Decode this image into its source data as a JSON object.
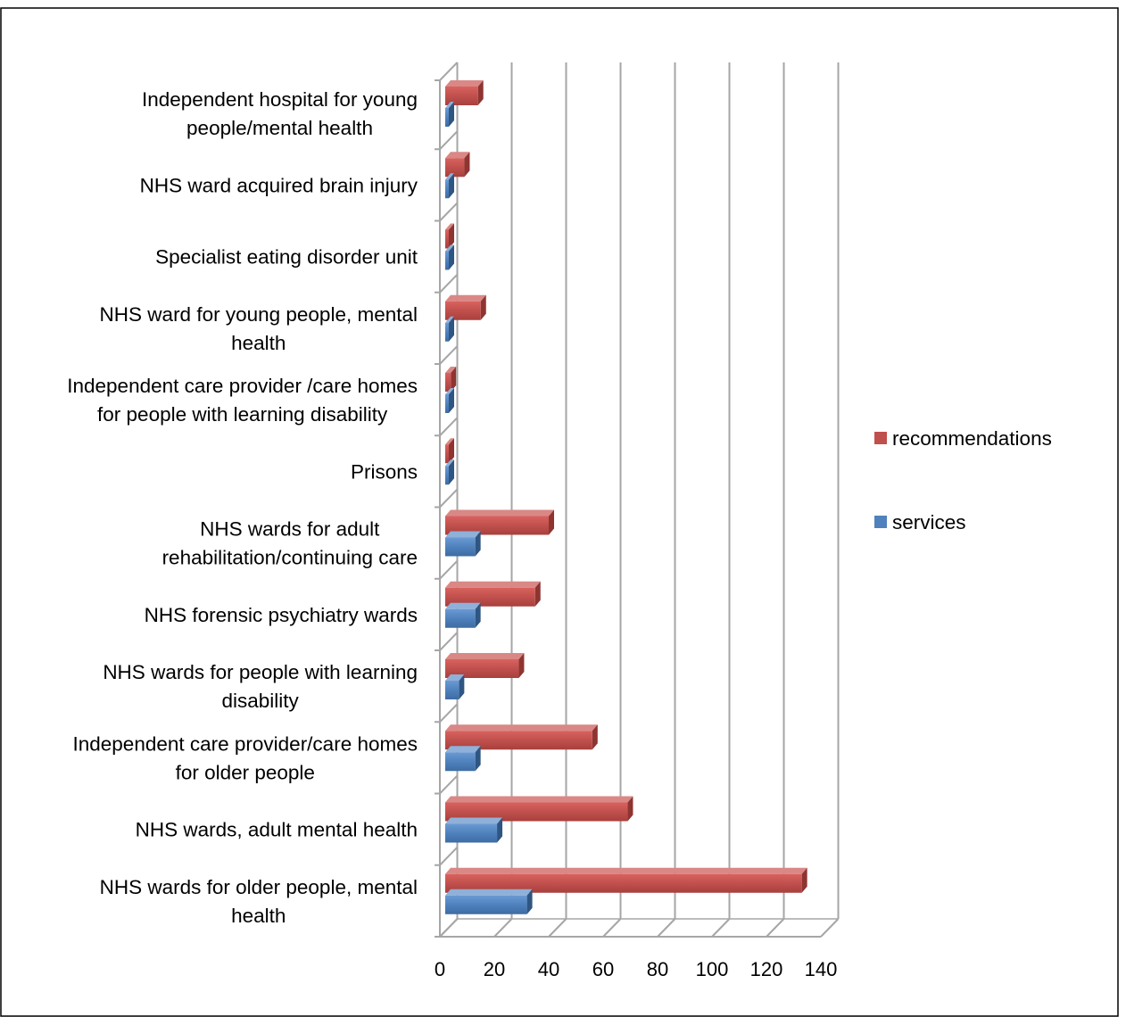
{
  "chart_data": {
    "type": "bar",
    "orientation": "horizontal",
    "categories": [
      [
        "Independent hospital for young",
        "people/mental health"
      ],
      [
        "NHS ward acquired brain injury"
      ],
      [
        "Specialist eating disorder unit"
      ],
      [
        "NHS ward for young people, mental",
        "health"
      ],
      [
        "Independent care provider /care homes",
        "for people with learning disability"
      ],
      [
        "Prisons"
      ],
      [
        "NHS wards for adult",
        "rehabilitation/continuing care"
      ],
      [
        "NHS forensic psychiatry wards"
      ],
      [
        "NHS wards for people with learning",
        "disability"
      ],
      [
        "Independent care provider/care homes",
        "for older people"
      ],
      [
        "NHS wards, adult mental health"
      ],
      [
        "NHS wards for older people, mental",
        "health"
      ]
    ],
    "series": [
      {
        "name": "recommendations",
        "color": "#c0504d",
        "values": [
          14,
          9,
          3,
          15,
          4,
          3,
          40,
          35,
          29,
          56,
          69,
          133
        ]
      },
      {
        "name": "services",
        "color": "#4f81bd",
        "values": [
          2,
          2,
          1,
          3,
          1,
          1,
          13,
          13,
          7,
          13,
          21,
          32
        ]
      }
    ],
    "xticks": [
      "0",
      "20",
      "40",
      "60",
      "80",
      "100",
      "120",
      "140"
    ],
    "xlim": [
      0,
      140
    ],
    "grid": true,
    "legend": "right",
    "style": "3d"
  }
}
